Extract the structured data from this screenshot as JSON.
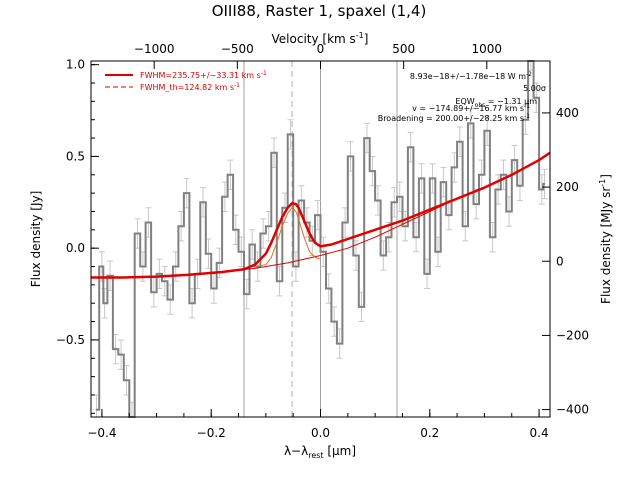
{
  "chart_data": {
    "type": "line",
    "title": "OIII88, Raster 1, spaxel (1,4)",
    "xlabel": "λ−λ",
    "xlabel_sub": "rest",
    "xlabel_unit": " [μm]",
    "ylabel": "Flux density [Jy]",
    "top_axis_label": "Velocity [km s",
    "top_axis_label_exp": "-1",
    "top_axis_label_end": "]",
    "right_axis_label": "Flux density [MJy sr",
    "right_axis_label_exp": "-1",
    "right_axis_label_end": "]",
    "xlim": [
      -0.42,
      0.42
    ],
    "ylim": [
      -0.92,
      1.02
    ],
    "top_xlim": [
      -1380,
      1380
    ],
    "right_ylim": [
      -420,
      540
    ],
    "x_ticks": [
      -0.4,
      -0.2,
      0.0,
      0.2,
      0.4
    ],
    "x_tick_labels": [
      "−0.4",
      "−0.2",
      "0.0",
      "0.2",
      "0.4"
    ],
    "y_ticks": [
      -0.5,
      0.0,
      0.5,
      1.0
    ],
    "y_tick_labels": [
      "−0.5",
      "0.0",
      "0.5",
      "1.0"
    ],
    "top_ticks": [
      -1000,
      -500,
      0,
      500,
      1000
    ],
    "top_tick_labels": [
      "−1000",
      "−500",
      "0",
      "500",
      "1000"
    ],
    "right_ticks": [
      -400,
      -200,
      0,
      200,
      400
    ],
    "right_tick_labels": [
      "−400",
      "−200",
      "0",
      "200",
      "400"
    ],
    "vertical_lines": [
      -0.14,
      0.0,
      0.14
    ],
    "line_center": -0.052,
    "legend": [
      {
        "label": "FWHM=235.75+/−33.31 km s",
        "exp": "-1",
        "style": "solid",
        "color": "#e00000"
      },
      {
        "label": "FWHM_th=124.82 km s",
        "exp": "-1",
        "style": "dashed",
        "color": "#e00000"
      }
    ],
    "annotations": [
      "8.93e−18+/−1.78e−18 W m",
      "5.00σ",
      "EQW",
      "v = −174.89+/−16.77 km s",
      "Broadening = 200.00+/−28.25 km s"
    ],
    "annotation_parts": {
      "eqw_sub": "obs",
      "eqw_value": " = −1.31 μm",
      "exp_neg2": "-2",
      "exp_neg1": "-1"
    },
    "spectrum": {
      "x": [
        -0.41,
        -0.4,
        -0.395,
        -0.385,
        -0.375,
        -0.365,
        -0.355,
        -0.345,
        -0.335,
        -0.325,
        -0.315,
        -0.305,
        -0.295,
        -0.285,
        -0.275,
        -0.265,
        -0.255,
        -0.245,
        -0.235,
        -0.225,
        -0.215,
        -0.205,
        -0.195,
        -0.185,
        -0.175,
        -0.165,
        -0.155,
        -0.145,
        -0.135,
        -0.125,
        -0.115,
        -0.105,
        -0.095,
        -0.085,
        -0.075,
        -0.065,
        -0.055,
        -0.045,
        -0.035,
        -0.025,
        -0.015,
        -0.005,
        0.005,
        0.015,
        0.025,
        0.035,
        0.045,
        0.055,
        0.065,
        0.075,
        0.085,
        0.095,
        0.105,
        0.115,
        0.125,
        0.135,
        0.145,
        0.155,
        0.165,
        0.175,
        0.185,
        0.195,
        0.205,
        0.215,
        0.225,
        0.235,
        0.245,
        0.255,
        0.265,
        0.275,
        0.285,
        0.295,
        0.305,
        0.315,
        0.325,
        0.335,
        0.345,
        0.355,
        0.365,
        0.375,
        0.385,
        0.395,
        0.405,
        0.41
      ],
      "y": [
        -0.88,
        -0.1,
        -0.3,
        -0.15,
        -0.55,
        -0.58,
        -0.72,
        -0.92,
        0.08,
        -0.1,
        0.14,
        -0.24,
        -0.14,
        -0.18,
        -0.28,
        -0.1,
        0.12,
        0.3,
        -0.3,
        -0.14,
        0.25,
        -0.03,
        -0.22,
        -0.08,
        0.28,
        0.4,
        0.1,
        -0.02,
        -0.25,
        0.02,
        -0.1,
        0.08,
        0.12,
        0.52,
        -0.18,
        0.22,
        0.62,
        -0.1,
        0.26,
        0.14,
        0.04,
        0.18,
        -0.02,
        -0.22,
        -0.4,
        -0.52,
        0.14,
        0.5,
        -0.04,
        -0.32,
        0.6,
        0.42,
        0.26,
        -0.04,
        0.06,
        0.25,
        0.28,
        0.12,
        0.55,
        0.06,
        0.38,
        -0.14,
        0.38,
        -0.02,
        0.36,
        0.18,
        0.44,
        0.58,
        0.12,
        0.68,
        0.24,
        0.4,
        0.64,
        0.06,
        0.32,
        0.4,
        0.2,
        0.48,
        0.34,
        0.7,
        1.05,
        0.82,
        0.32,
        0.35
      ],
      "err": [
        0.08,
        0.08,
        0.08,
        0.08,
        0.08,
        0.08,
        0.08,
        0.08,
        0.08,
        0.08,
        0.08,
        0.08,
        0.08,
        0.08,
        0.08,
        0.08,
        0.08,
        0.08,
        0.08,
        0.08,
        0.08,
        0.08,
        0.08,
        0.08,
        0.08,
        0.08,
        0.08,
        0.08,
        0.08,
        0.08,
        0.08,
        0.08,
        0.08,
        0.08,
        0.08,
        0.08,
        0.08,
        0.08,
        0.08,
        0.08,
        0.08,
        0.08,
        0.08,
        0.08,
        0.08,
        0.08,
        0.08,
        0.08,
        0.08,
        0.08,
        0.08,
        0.08,
        0.08,
        0.08,
        0.08,
        0.08,
        0.08,
        0.08,
        0.08,
        0.08,
        0.08,
        0.08,
        0.08,
        0.08,
        0.08,
        0.08,
        0.08,
        0.08,
        0.08,
        0.08,
        0.08,
        0.08,
        0.08,
        0.08,
        0.08,
        0.08,
        0.08,
        0.08,
        0.08,
        0.08,
        0.08,
        0.08,
        0.08,
        0.08
      ]
    },
    "fit": {
      "x": [
        -0.42,
        -0.36,
        -0.3,
        -0.24,
        -0.18,
        -0.14,
        -0.12,
        -0.1,
        -0.09,
        -0.08,
        -0.07,
        -0.06,
        -0.052,
        -0.045,
        -0.04,
        -0.03,
        -0.02,
        -0.01,
        0.0,
        0.02,
        0.05,
        0.1,
        0.15,
        0.2,
        0.25,
        0.3,
        0.35,
        0.4,
        0.42
      ],
      "y": [
        -0.16,
        -0.16,
        -0.155,
        -0.145,
        -0.13,
        -0.115,
        -0.09,
        -0.03,
        0.03,
        0.1,
        0.17,
        0.22,
        0.245,
        0.24,
        0.22,
        0.15,
        0.08,
        0.03,
        0.01,
        0.02,
        0.05,
        0.1,
        0.15,
        0.21,
        0.27,
        0.33,
        0.4,
        0.48,
        0.52
      ]
    },
    "continuum": {
      "x": [
        -0.42,
        -0.36,
        -0.3,
        -0.24,
        -0.18,
        -0.12,
        -0.06,
        0.0,
        0.05,
        0.1,
        0.15,
        0.2,
        0.25,
        0.3,
        0.35,
        0.4,
        0.42
      ],
      "y": [
        -0.16,
        -0.16,
        -0.155,
        -0.145,
        -0.13,
        -0.11,
        -0.08,
        -0.04,
        0.0,
        0.06,
        0.13,
        0.2,
        0.27,
        0.33,
        0.4,
        0.48,
        0.52
      ]
    },
    "component": {
      "x": [
        -0.12,
        -0.1,
        -0.09,
        -0.08,
        -0.07,
        -0.06,
        -0.052,
        -0.045,
        -0.04,
        -0.03,
        -0.02,
        -0.01,
        0.0
      ],
      "y": [
        -0.1,
        -0.09,
        -0.05,
        0.03,
        0.12,
        0.19,
        0.22,
        0.2,
        0.16,
        0.06,
        -0.02,
        -0.05,
        -0.06
      ]
    },
    "colors": {
      "spectrum": "#808080",
      "errorbar": "#c8c8c8",
      "fit": "#e00000",
      "component": "#e07020",
      "vline": "#a0a0a0",
      "center_line": "#b0b0b0"
    }
  }
}
